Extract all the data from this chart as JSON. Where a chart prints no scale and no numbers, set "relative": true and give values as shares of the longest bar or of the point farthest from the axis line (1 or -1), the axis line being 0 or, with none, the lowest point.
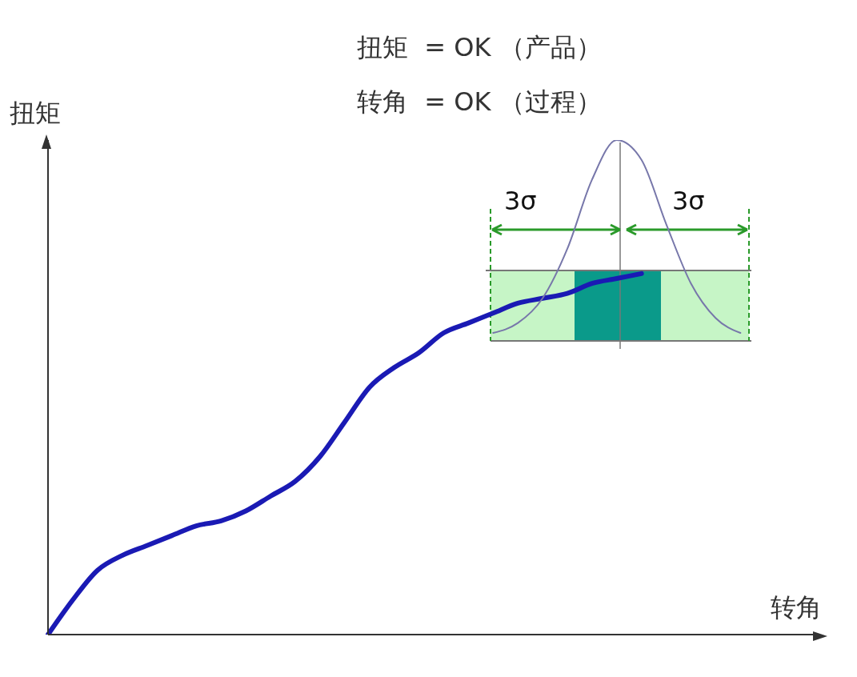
{
  "chart_data": {
    "type": "line",
    "relative": true,
    "xlabel": "转角",
    "ylabel": "扭矩",
    "annotations": [
      "扭矩  = OK （产品）",
      "转角  = OK （过程）",
      "3σ",
      "3σ"
    ],
    "categories": [
      null,
      null,
      null,
      null,
      null,
      null,
      null,
      null,
      null,
      null,
      null,
      null,
      null,
      null,
      null,
      null,
      null,
      null,
      null,
      null,
      null,
      null,
      null,
      null,
      null,
      null,
      null,
      null,
      null,
      null,
      null,
      null
    ],
    "series": [
      {
        "color": "#1a1ab4",
        "values": [
          0,
          0.07,
          0.13,
          0.16,
          0.18,
          0.2,
          0.22,
          0.23,
          0.25,
          0.28,
          0.31,
          0.36,
          0.43,
          0.5,
          0.54,
          0.57,
          0.61,
          0.63,
          0.65,
          0.67,
          0.68,
          0.69,
          0.71,
          0.72,
          0.73,
          null,
          null,
          null,
          null,
          null,
          null,
          null
        ]
      },
      {
        "color": "#7777aa",
        "values": [
          null,
          null,
          null,
          null,
          null,
          null,
          null,
          null,
          null,
          null,
          null,
          null,
          null,
          null,
          null,
          null,
          null,
          null,
          0.61,
          0.63,
          0.68,
          0.78,
          0.92,
          1.0,
          0.96,
          0.83,
          0.71,
          0.64,
          0.61,
          null,
          null,
          null
        ]
      }
    ],
    "grid": false,
    "legend": false,
    "marker": "none",
    "line_style": "solid"
  }
}
